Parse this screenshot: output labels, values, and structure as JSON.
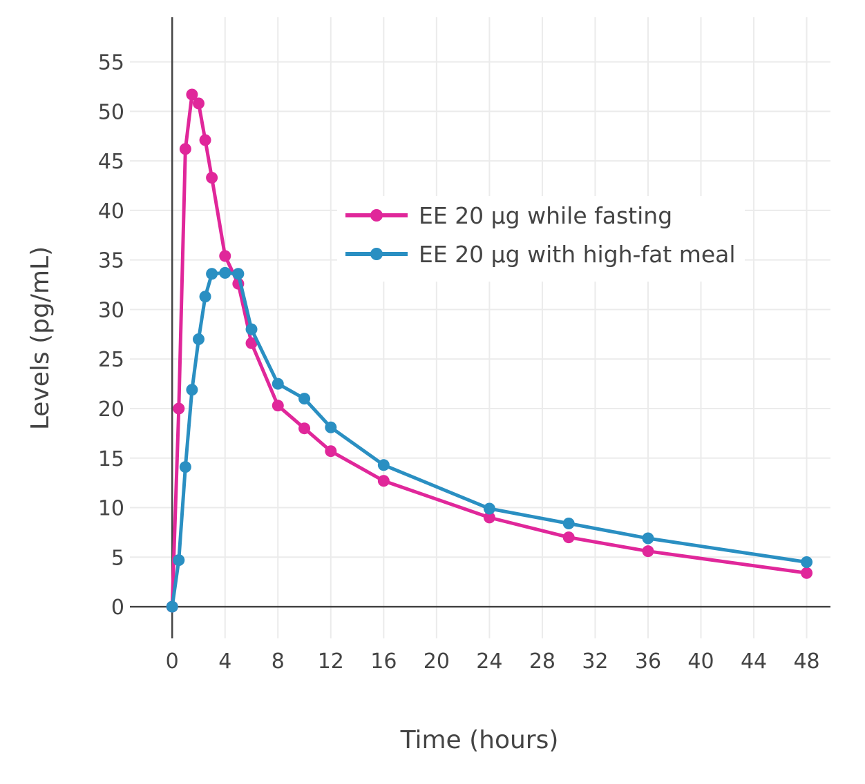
{
  "chart_data": {
    "type": "line",
    "title": "",
    "xlabel": "Time (hours)",
    "ylabel": "Levels (pg/mL)",
    "xlim": [
      -3.2,
      49.8
    ],
    "ylim": [
      -3.2,
      59.5
    ],
    "xticks": [
      0,
      4,
      8,
      12,
      16,
      20,
      24,
      28,
      32,
      36,
      40,
      44,
      48
    ],
    "xtick_labels": [
      "0",
      "4",
      "8",
      "12",
      "16",
      "20",
      "24",
      "28",
      "32",
      "36",
      "40",
      "44",
      "48"
    ],
    "yticks": [
      0,
      5,
      10,
      15,
      20,
      25,
      30,
      35,
      40,
      45,
      50,
      55
    ],
    "ytick_labels": [
      "0",
      "5",
      "10",
      "15",
      "20",
      "25",
      "30",
      "35",
      "40",
      "45",
      "50",
      "55"
    ],
    "grid": true,
    "legend_position": "upper-right-center",
    "series": [
      {
        "name": "EE 20 µg while fasting",
        "color": "#e0279a",
        "x": [
          0,
          0.5,
          1,
          1.5,
          2,
          2.5,
          3,
          4,
          5,
          6,
          8,
          10,
          12,
          16,
          24,
          30,
          36,
          48
        ],
        "y": [
          0,
          20.0,
          46.2,
          51.7,
          50.8,
          47.1,
          43.3,
          35.4,
          32.6,
          26.6,
          20.3,
          18.0,
          15.7,
          12.7,
          9.0,
          7.0,
          5.6,
          3.4
        ]
      },
      {
        "name": "EE 20 µg with high-fat meal",
        "color": "#2a8fc2",
        "x": [
          0,
          0.5,
          1,
          1.5,
          2,
          2.5,
          3,
          4,
          5,
          6,
          8,
          10,
          12,
          16,
          24,
          30,
          36,
          48
        ],
        "y": [
          0,
          4.7,
          14.1,
          21.9,
          27.0,
          31.3,
          33.6,
          33.7,
          33.6,
          28.0,
          22.5,
          21.0,
          18.1,
          14.3,
          9.9,
          8.4,
          6.9,
          4.5
        ]
      }
    ]
  }
}
